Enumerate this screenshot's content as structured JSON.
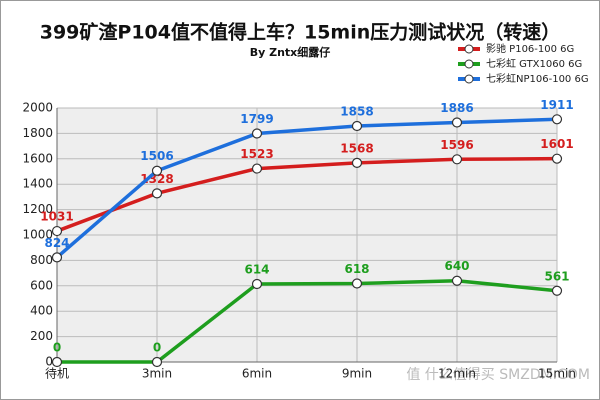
{
  "chart_data": {
    "type": "line",
    "title": "399矿渣P104值不值得上车？15min压力测试状况（转速）",
    "subtitle": "By  Zntx细露仔",
    "watermark": "值 什么值得买 SMZDM.COM",
    "categories": [
      "待机",
      "3min",
      "6min",
      "9min",
      "12min",
      "15min"
    ],
    "series": [
      {
        "name": "影驰  P106-100 6G",
        "color": "#d41e1e",
        "values": [
          1031,
          1328,
          1523,
          1568,
          1596,
          1601
        ]
      },
      {
        "name": "七彩虹 GTX1060 6G",
        "color": "#1e9e1e",
        "values": [
          0,
          0,
          614,
          618,
          640,
          561
        ]
      },
      {
        "name": "七彩虹NP106-100 6G",
        "color": "#1e6fdc",
        "values": [
          824,
          1506,
          1799,
          1858,
          1886,
          1911
        ]
      }
    ],
    "ylim": [
      0,
      2000
    ],
    "yticks": [
      0,
      200,
      400,
      600,
      800,
      1000,
      1200,
      1400,
      1600,
      1800,
      2000
    ],
    "grid": true
  }
}
